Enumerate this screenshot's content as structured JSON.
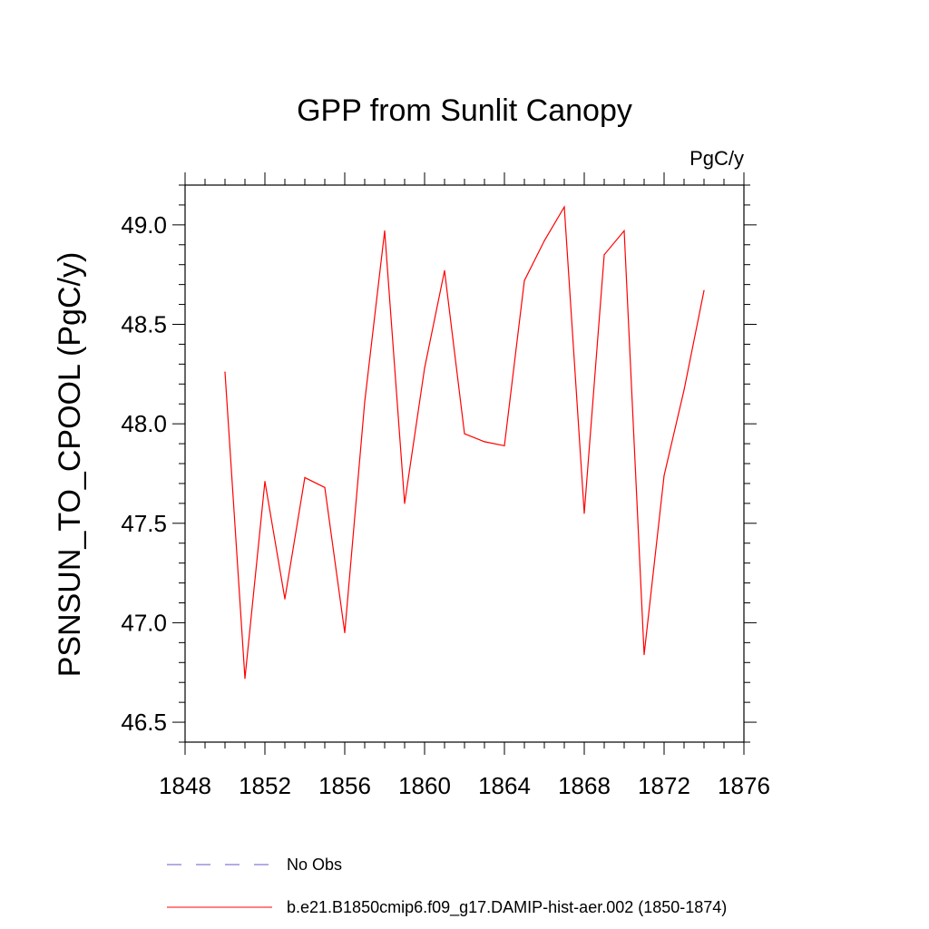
{
  "chart_data": {
    "type": "line",
    "title": "GPP from Sunlit Canopy",
    "units_label": "PgC/y",
    "ylabel": "PSNSUN_TO_CPOOL  (PgC/y)",
    "xlabel": "",
    "xlim": [
      1848,
      1876
    ],
    "ylim": [
      46.4,
      49.2
    ],
    "xticks": [
      1848,
      1852,
      1856,
      1860,
      1864,
      1868,
      1872,
      1876
    ],
    "xtick_labels": [
      "1848",
      "1852",
      "1856",
      "1860",
      "1864",
      "1868",
      "1872",
      "1876"
    ],
    "yticks": [
      46.5,
      47.0,
      47.5,
      48.0,
      48.5,
      49.0
    ],
    "ytick_labels": [
      "46.5",
      "47.0",
      "47.5",
      "48.0",
      "48.5",
      "49.0"
    ],
    "series": [
      {
        "name": "b.e21.B1850cmip6.f09_g17.DAMIP-hist-aer.002 (1850-1874)",
        "color": "#ff0000",
        "x": [
          1850,
          1851,
          1852,
          1853,
          1854,
          1855,
          1856,
          1857,
          1858,
          1859,
          1860,
          1861,
          1862,
          1863,
          1864,
          1865,
          1866,
          1867,
          1868,
          1869,
          1870,
          1871,
          1872,
          1873,
          1874
        ],
        "y": [
          48.26,
          46.72,
          47.71,
          47.12,
          47.73,
          47.68,
          46.95,
          48.11,
          48.97,
          47.6,
          48.28,
          48.77,
          47.95,
          47.91,
          47.89,
          48.72,
          48.92,
          49.09,
          47.55,
          48.85,
          48.97,
          46.84,
          47.74,
          48.17,
          48.67
        ]
      }
    ],
    "legend": {
      "placement": "bottom",
      "entries": [
        {
          "label": "No Obs",
          "color": "#6a5acd",
          "style": "dashed"
        },
        {
          "label": "b.e21.B1850cmip6.f09_g17.DAMIP-hist-aer.002 (1850-1874)",
          "color": "#ff0000",
          "style": "solid"
        }
      ]
    },
    "grid": false
  }
}
